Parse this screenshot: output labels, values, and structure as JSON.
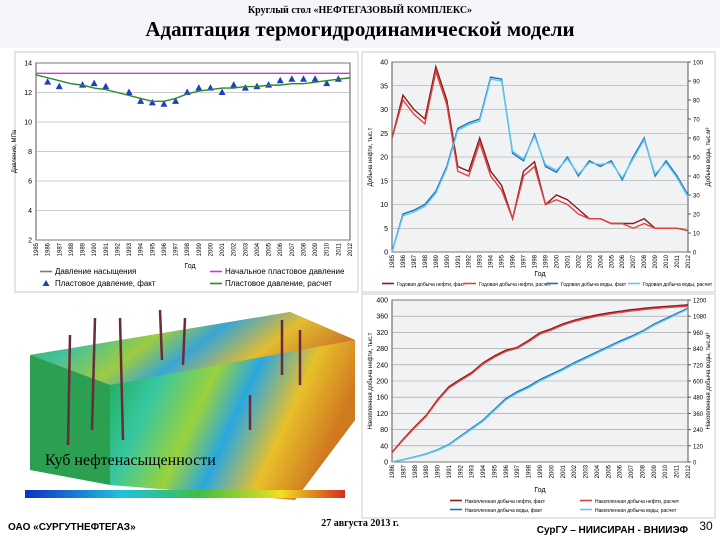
{
  "header": {
    "event": "Круглый стол «НЕФТЕГАЗОВЫЙ КОМПЛЕКС»",
    "title": "Адаптация термогидродинамической модели"
  },
  "image": {
    "caption": "Куб нефтенасыщенности"
  },
  "footer": {
    "company": "ОАО «СУРГУТНЕФТЕГАЗ»",
    "date": "27 августа 2013 г.",
    "authors": "СурГУ – НИИСИРАН - ВНИИЭФ",
    "page": "30"
  },
  "chart_data": [
    {
      "type": "line",
      "ylabel": "Давление, МПа",
      "xlabel": "Год",
      "grid": true,
      "legend": "below",
      "categories": [
        "1985",
        "1986",
        "1987",
        "1988",
        "1989",
        "1990",
        "1991",
        "1992",
        "1993",
        "1994",
        "1995",
        "1996",
        "1997",
        "1998",
        "1999",
        "2000",
        "2001",
        "2002",
        "2003",
        "2004",
        "2005",
        "2006",
        "2007",
        "2008",
        "2009",
        "2010",
        "2011",
        "2012"
      ],
      "ylim": [
        2,
        14
      ],
      "yticks": [
        2,
        4,
        6,
        8,
        10,
        12,
        14
      ],
      "series": [
        {
          "name": "Давление насыщения",
          "color": "#7a7a7a",
          "values": [
            null,
            null,
            null,
            null,
            null,
            null,
            null,
            null,
            null,
            null,
            null,
            null,
            null,
            null,
            null,
            null,
            null,
            null,
            null,
            null,
            null,
            null,
            null,
            null,
            null,
            null,
            null,
            null
          ]
        },
        {
          "name": "Начальное пластовое давление",
          "color": "#e030e0",
          "values": [
            13.3,
            13.3,
            13.3,
            13.3,
            13.3,
            13.3,
            13.3,
            13.3,
            13.3,
            13.3,
            13.3,
            13.3,
            13.3,
            13.3,
            13.3,
            13.3,
            13.3,
            13.3,
            13.3,
            13.3,
            13.3,
            13.3,
            13.3,
            13.3,
            13.3,
            13.3,
            13.3,
            13.3
          ]
        },
        {
          "name": "Пластовое давление, факт",
          "color": "#1f3fc8",
          "marker": "triangle",
          "values": [
            null,
            12.7,
            12.4,
            null,
            12.5,
            12.6,
            12.4,
            null,
            12.0,
            11.4,
            11.3,
            11.2,
            11.4,
            12.0,
            12.3,
            12.3,
            12.0,
            12.5,
            12.3,
            12.4,
            12.5,
            12.8,
            12.9,
            12.9,
            12.9,
            12.6,
            12.9,
            null
          ]
        },
        {
          "name": "Пластовое давление, расчет",
          "color": "#2a8a2a",
          "values": [
            13.2,
            13.0,
            12.8,
            12.6,
            12.5,
            12.3,
            12.2,
            12.0,
            11.8,
            11.6,
            11.4,
            11.4,
            11.6,
            11.9,
            12.1,
            12.2,
            12.3,
            12.3,
            12.4,
            12.4,
            12.5,
            12.5,
            12.6,
            12.6,
            12.7,
            12.8,
            12.9,
            13.0
          ]
        }
      ]
    },
    {
      "type": "line",
      "ylabel": "Добыча нефти, тыс.т",
      "y2label": "Добыча воды, тыс.м³",
      "xlabel": "Год",
      "grid": true,
      "legend": "below",
      "categories": [
        "1985",
        "1986",
        "1987",
        "1988",
        "1989",
        "1990",
        "1991",
        "1992",
        "1993",
        "1994",
        "1995",
        "1996",
        "1997",
        "1998",
        "1999",
        "2000",
        "2001",
        "2002",
        "2003",
        "2004",
        "2005",
        "2006",
        "2007",
        "2008",
        "2009",
        "2010",
        "2011",
        "2012"
      ],
      "ylim": [
        0,
        40
      ],
      "yticks": [
        0,
        5,
        10,
        15,
        20,
        25,
        30,
        35,
        40
      ],
      "y2lim": [
        0,
        100
      ],
      "y2ticks": [
        0,
        10,
        20,
        30,
        40,
        50,
        60,
        70,
        80,
        90,
        100
      ],
      "series": [
        {
          "name": "Годовая добыча нефти, факт",
          "color": "#8b1a1a",
          "values": [
            24,
            33,
            30,
            28,
            39,
            32,
            18,
            17,
            24,
            17,
            14,
            7,
            17,
            19,
            10,
            12,
            11,
            9,
            7,
            7,
            6,
            6,
            6,
            7,
            5,
            5,
            5,
            4.5
          ]
        },
        {
          "name": "Годовая добыча нефти, расчет",
          "color": "#e04040",
          "values": [
            24,
            32,
            29,
            27,
            38,
            31,
            17,
            16,
            23,
            16,
            13,
            7,
            16,
            18,
            10,
            11,
            10,
            8,
            7,
            7,
            6,
            6,
            5,
            6,
            5,
            5,
            5,
            4.5
          ]
        },
        {
          "name": "Годовая добыча воды, факт",
          "color": "#1f6fb4",
          "axis": "y2",
          "values": [
            0,
            20,
            22,
            25,
            32,
            45,
            65,
            68,
            70,
            92,
            91,
            52,
            48,
            62,
            45,
            42,
            50,
            40,
            48,
            45,
            48,
            38,
            50,
            60,
            40,
            48,
            40,
            30
          ]
        },
        {
          "name": "Годовая добыча воды, расчет",
          "color": "#5ec8f0",
          "axis": "y2",
          "values": [
            0,
            19,
            21,
            24,
            31,
            44,
            64,
            67,
            69,
            91,
            90,
            53,
            49,
            61,
            46,
            43,
            49,
            41,
            47,
            46,
            47,
            39,
            49,
            59,
            41,
            47,
            39,
            29
          ]
        }
      ]
    },
    {
      "type": "line",
      "ylabel": "Накопленная добыча нефти, тыс.т",
      "y2label": "Накопленная добыча воды, тыс.м³",
      "xlabel": "Год",
      "grid": true,
      "legend": "below",
      "categories": [
        "1986",
        "1987",
        "1988",
        "1989",
        "1990",
        "1991",
        "1992",
        "1993",
        "1994",
        "1995",
        "1996",
        "1997",
        "1998",
        "1999",
        "2000",
        "2001",
        "2002",
        "2003",
        "2004",
        "2005",
        "2006",
        "2007",
        "2008",
        "2009",
        "2010",
        "2011",
        "2012"
      ],
      "ylim": [
        0,
        400
      ],
      "yticks": [
        0,
        40,
        80,
        120,
        160,
        200,
        240,
        280,
        320,
        360,
        400
      ],
      "y2lim": [
        0,
        1200
      ],
      "y2ticks": [
        0,
        120,
        240,
        360,
        480,
        600,
        720,
        840,
        960,
        1080,
        1200
      ],
      "series": [
        {
          "name": "Накопленная добыча нефти, факт",
          "color": "#8b1a1a",
          "values": [
            24,
            57,
            87,
            115,
            154,
            186,
            204,
            221,
            245,
            262,
            276,
            283,
            300,
            319,
            329,
            341,
            350,
            357,
            363,
            368,
            372,
            376,
            379,
            382,
            384,
            386,
            388
          ]
        },
        {
          "name": "Накопленная добыча нефти, расчет",
          "color": "#e04040",
          "values": [
            23,
            55,
            85,
            113,
            151,
            183,
            201,
            218,
            242,
            259,
            273,
            281,
            297,
            316,
            326,
            338,
            347,
            354,
            360,
            365,
            369,
            373,
            376,
            379,
            381,
            383,
            385
          ]
        },
        {
          "name": "Накопленная добыча воды, факт",
          "color": "#1f6fb4",
          "axis": "y2",
          "values": [
            0,
            18,
            38,
            60,
            90,
            130,
            190,
            250,
            310,
            390,
            470,
            520,
            560,
            610,
            650,
            690,
            735,
            775,
            815,
            855,
            895,
            930,
            970,
            1020,
            1060,
            1100,
            1140
          ]
        },
        {
          "name": "Накопленная добыча воды, расчет",
          "color": "#5ec8f0",
          "axis": "y2",
          "values": [
            0,
            17,
            36,
            57,
            86,
            125,
            184,
            243,
            302,
            381,
            460,
            510,
            550,
            600,
            641,
            681,
            726,
            766,
            806,
            846,
            886,
            922,
            962,
            1012,
            1052,
            1093,
            1133
          ]
        }
      ]
    }
  ]
}
